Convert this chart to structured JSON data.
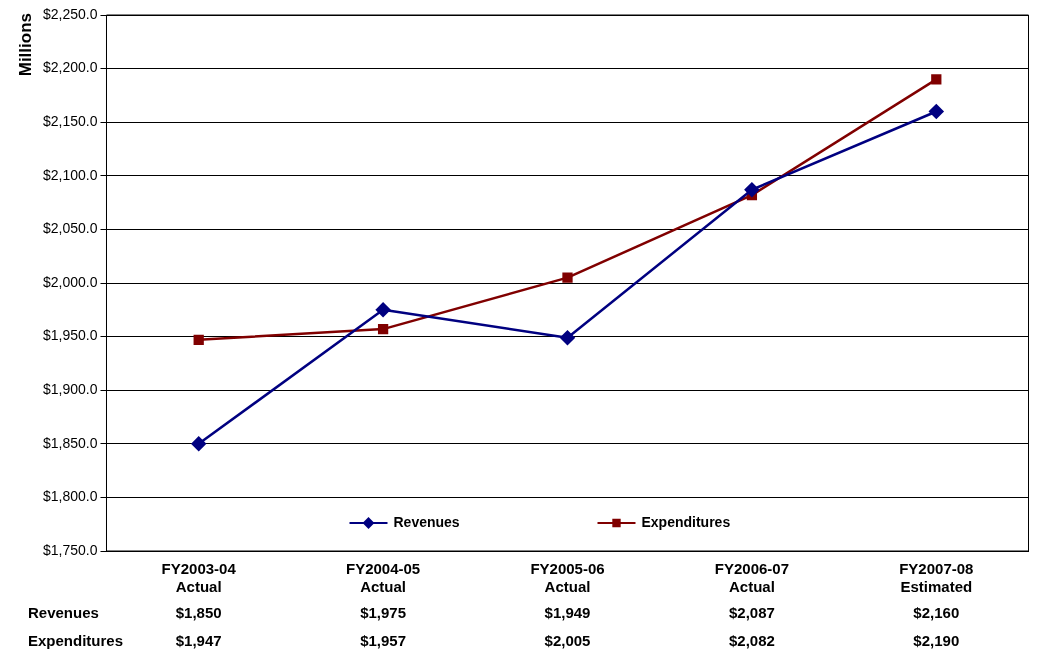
{
  "chart_data": {
    "type": "line",
    "ylabel": "Millions",
    "categories": [
      "FY2003-04\nActual",
      "FY2004-05\nActual",
      "FY2005-06\nActual",
      "FY2006-07\nActual",
      "FY2007-08\nEstimated"
    ],
    "series": [
      {
        "name": "Revenues",
        "color": "#000080",
        "marker": "diamond",
        "values": [
          1850,
          1975,
          1949,
          2087,
          2160
        ],
        "value_labels": [
          "$1,850",
          "$1,975",
          "$1,949",
          "$2,087",
          "$2,160"
        ]
      },
      {
        "name": "Expenditures",
        "color": "#800000",
        "marker": "square",
        "values": [
          1947,
          1957,
          2005,
          2082,
          2190
        ],
        "value_labels": [
          "$1,947",
          "$1,957",
          "$2,005",
          "$2,082",
          "$2,190"
        ]
      }
    ],
    "ylim": [
      1750,
      2250
    ],
    "yticks": [
      {
        "value": 1750,
        "label": "$1,750.0"
      },
      {
        "value": 1800,
        "label": "$1,800.0"
      },
      {
        "value": 1850,
        "label": "$1,850.0"
      },
      {
        "value": 1900,
        "label": "$1,900.0"
      },
      {
        "value": 1950,
        "label": "$1,950.0"
      },
      {
        "value": 2000,
        "label": "$2,000.0"
      },
      {
        "value": 2050,
        "label": "$2,050.0"
      },
      {
        "value": 2100,
        "label": "$2,100.0"
      },
      {
        "value": 2150,
        "label": "$2,150.0"
      },
      {
        "value": 2200,
        "label": "$2,200.0"
      },
      {
        "value": 2250,
        "label": "$2,250.0"
      }
    ],
    "grid": "y",
    "legend": "bottom",
    "line_style": "solid"
  }
}
